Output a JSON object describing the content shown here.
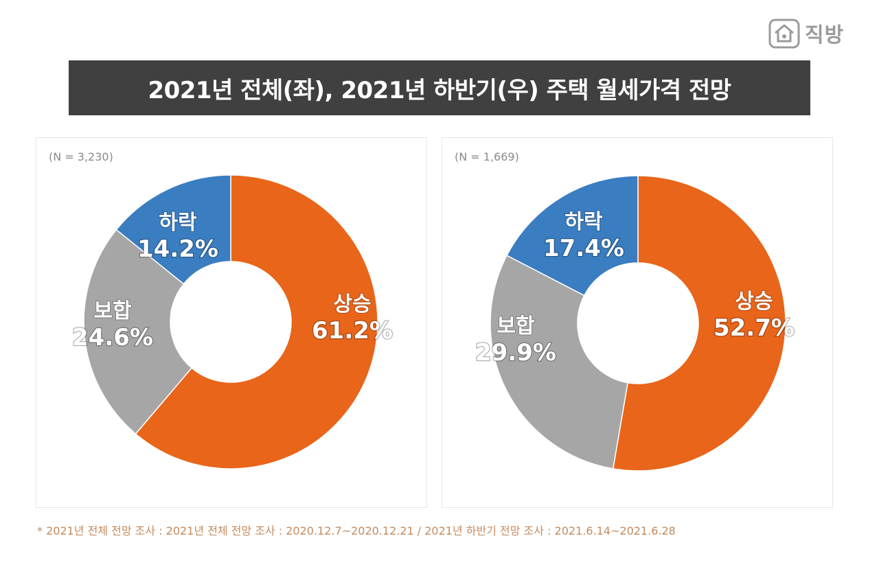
{
  "logo": {
    "text": "직방",
    "icon": "house-icon"
  },
  "title": "2021년 전체(좌), 2021년 하반기(우) 주택 월세가격 전망",
  "colors": {
    "up": "#E8651A",
    "hold": "#A6A6A6",
    "down": "#3A7DC1",
    "title_bg": "#404040",
    "footnote": "#C58A5C"
  },
  "chart_data": [
    {
      "type": "pie",
      "donut": true,
      "n_label": "(N = 3,230)",
      "slices": [
        {
          "label": "상승",
          "value": 61.2,
          "value_label": "61.2%",
          "color": "#E8651A"
        },
        {
          "label": "보합",
          "value": 24.6,
          "value_label": "24.6%",
          "color": "#A6A6A6"
        },
        {
          "label": "하락",
          "value": 14.2,
          "value_label": "14.2%",
          "color": "#3A7DC1"
        }
      ]
    },
    {
      "type": "pie",
      "donut": true,
      "n_label": "(N = 1,669)",
      "slices": [
        {
          "label": "상승",
          "value": 52.7,
          "value_label": "52.7%",
          "color": "#E8651A"
        },
        {
          "label": "보합",
          "value": 29.9,
          "value_label": "29.9%",
          "color": "#A6A6A6"
        },
        {
          "label": "하락",
          "value": 17.4,
          "value_label": "17.4%",
          "color": "#3A7DC1"
        }
      ]
    }
  ],
  "footnote": "* 2021년 전체 전망 조사 : 2021년 전체 전망 조사 : 2020.12.7~2020.12.21 / 2021년 하반기 전망 조사 : 2021.6.14~2021.6.28"
}
